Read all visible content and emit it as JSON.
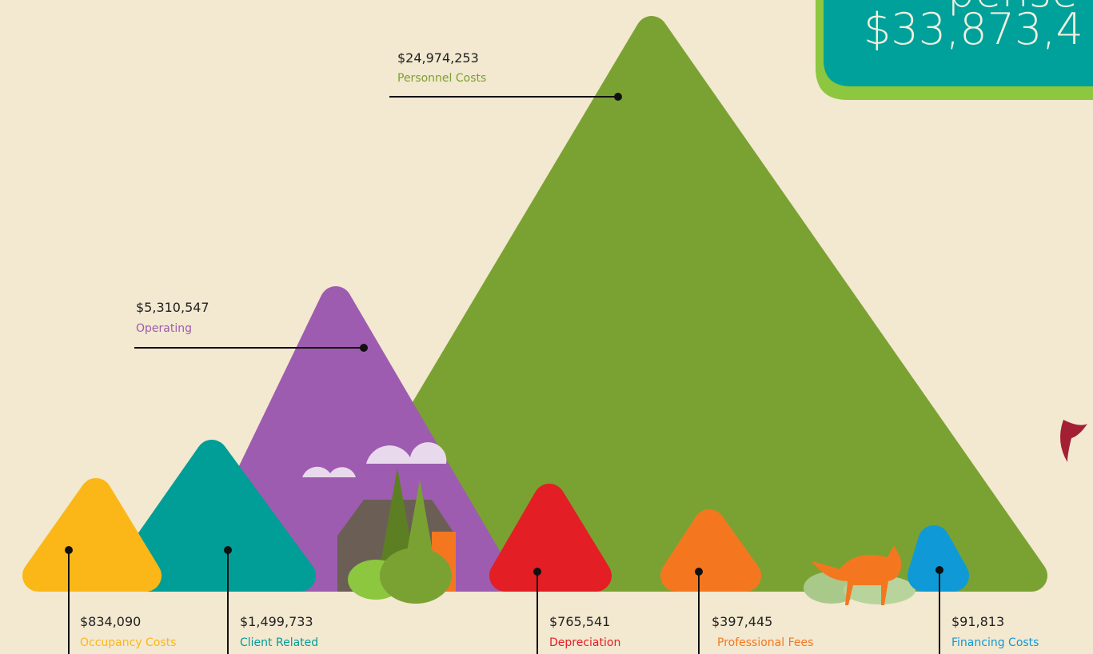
{
  "total": {
    "heading": "pense",
    "amount": "$33,873,4"
  },
  "items": [
    {
      "amount": "$24,974,253",
      "name": "Personnel Costs"
    },
    {
      "amount": "$5,310,547",
      "name": "Operating"
    },
    {
      "amount": "$834,090",
      "name": "Occupancy Costs"
    },
    {
      "amount": "$1,499,733",
      "name": "Client Related"
    },
    {
      "amount": "$765,541",
      "name": "Depreciation"
    },
    {
      "amount": "$397,445",
      "name": "Professional Fees"
    },
    {
      "amount": "$91,813",
      "name": "Financing Costs"
    }
  ]
}
